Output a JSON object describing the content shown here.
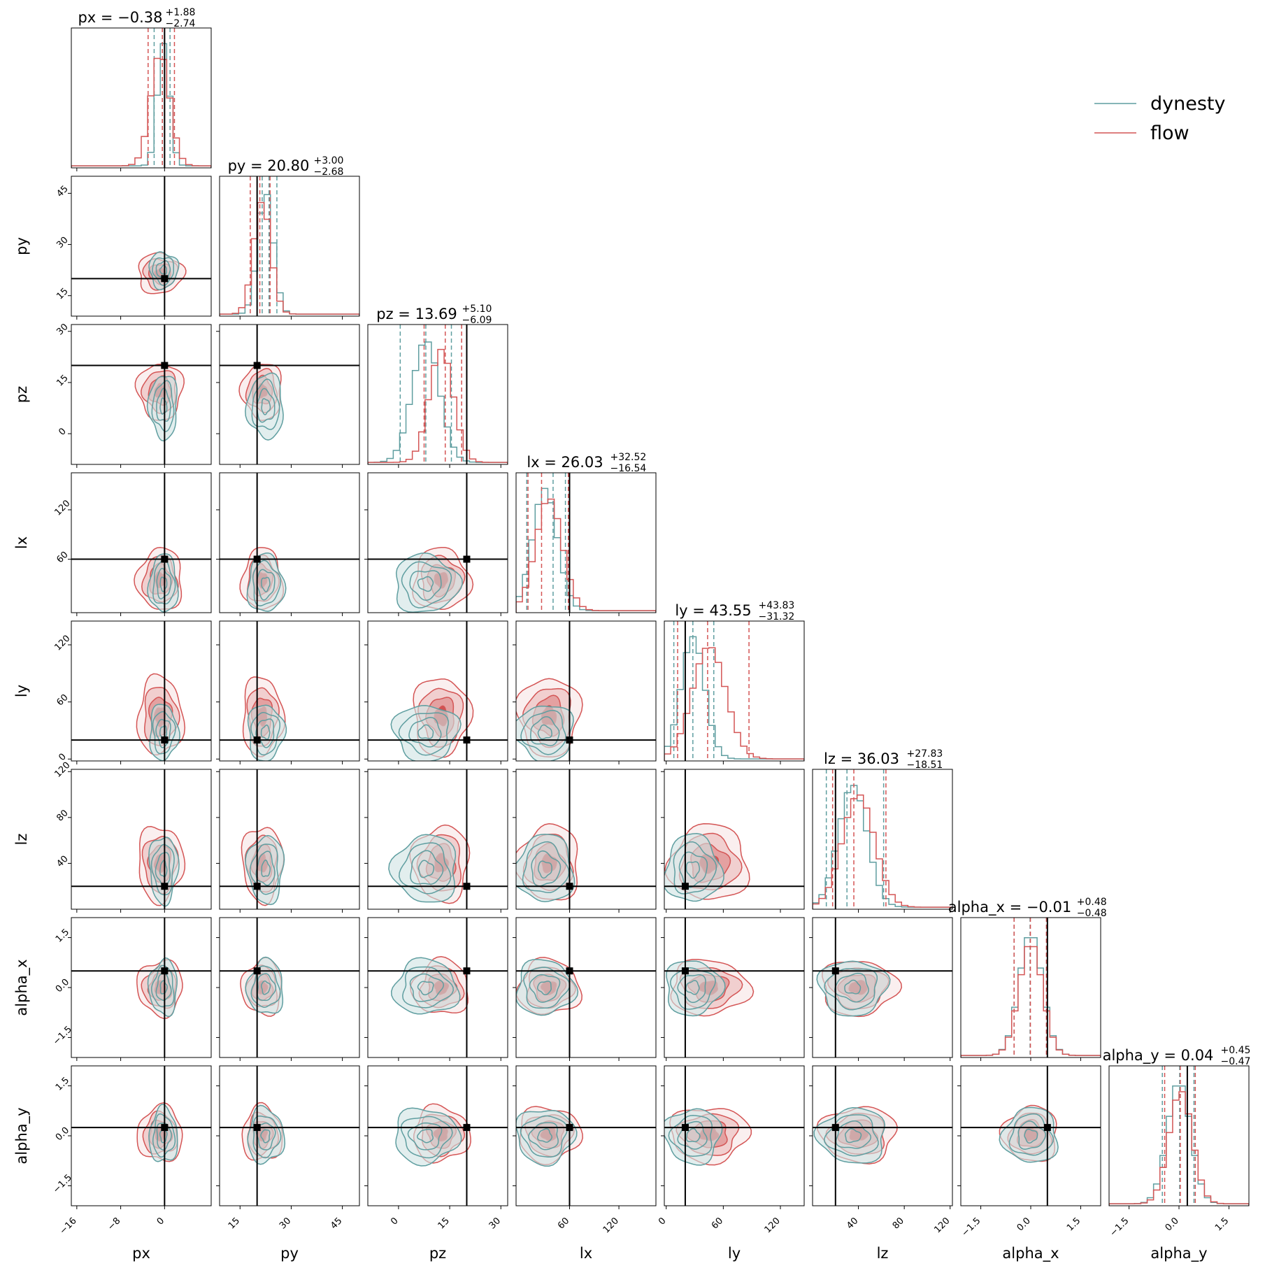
{
  "chart_data": {
    "type": "corner",
    "parameters": [
      "px",
      "py",
      "pz",
      "lx",
      "ly",
      "lz",
      "alpha_x",
      "alpha_y"
    ],
    "axis_labels": [
      "px",
      "py",
      "pz",
      "lx",
      "ly",
      "lz",
      "alpha_x",
      "alpha_y"
    ],
    "ranges": [
      [
        -17,
        8.5
      ],
      [
        9,
        50
      ],
      [
        -9,
        32
      ],
      [
        -5,
        165
      ],
      [
        -2,
        145
      ],
      [
        0,
        122
      ],
      [
        -2.1,
        2.1
      ],
      [
        -2.1,
        2.1
      ]
    ],
    "ticks": [
      [
        -16,
        -8,
        0
      ],
      [
        15,
        30,
        45
      ],
      [
        0,
        15,
        30
      ],
      [
        60,
        120
      ],
      [
        0,
        60,
        120
      ],
      [
        40,
        80,
        120
      ],
      [
        -1.5,
        0.0,
        1.5
      ],
      [
        -1.5,
        0.0,
        1.5
      ]
    ],
    "tick_labels": [
      [
        "−16",
        "−8",
        "0"
      ],
      [
        "15",
        "30",
        "45"
      ],
      [
        "0",
        "15",
        "30"
      ],
      [
        "60",
        "120"
      ],
      [
        "0",
        "60",
        "120"
      ],
      [
        "40",
        "80",
        "120"
      ],
      [
        "−1.5",
        "0.0",
        "1.5"
      ],
      [
        "−1.5",
        "0.0",
        "1.5"
      ]
    ],
    "truths": [
      0.0,
      20.0,
      20.0,
      60.0,
      20.0,
      20.0,
      0.5,
      0.25
    ],
    "titles": [
      {
        "name": "px",
        "median": "−0.38",
        "plus": "+1.88",
        "minus": "−2.74"
      },
      {
        "name": "py",
        "median": "20.80",
        "plus": "+3.00",
        "minus": "−2.68"
      },
      {
        "name": "pz",
        "median": "13.69",
        "plus": "+5.10",
        "minus": "−6.09"
      },
      {
        "name": "lx",
        "median": "26.03",
        "plus": "+32.52",
        "minus": "−16.54"
      },
      {
        "name": "ly",
        "median": "43.55",
        "plus": "+43.83",
        "minus": "−31.32"
      },
      {
        "name": "lz",
        "median": "36.03",
        "plus": "+27.83",
        "minus": "−18.51"
      },
      {
        "name": "alpha_x",
        "median": "−0.01",
        "plus": "+0.48",
        "minus": "−0.48"
      },
      {
        "name": "alpha_y",
        "median": "0.04",
        "plus": "+0.45",
        "minus": "−0.47"
      }
    ],
    "series": [
      {
        "name": "dynesty",
        "color": "#5f9ea0",
        "quantiles": [
          [
            -1.9,
            -0.4,
            1.0
          ],
          [
            21.5,
            23.5,
            25.8
          ],
          [
            0.5,
            8,
            15.5
          ],
          [
            8,
            40,
            55
          ],
          [
            8,
            28,
            50
          ],
          [
            12,
            30,
            62
          ],
          [
            -0.5,
            -0.02,
            0.5
          ],
          [
            -0.5,
            0.02,
            0.45
          ]
        ],
        "center": [
          -0.2,
          22.5,
          8,
          30,
          28,
          35,
          0.0,
          0.0
        ],
        "spread": [
          2.2,
          4.5,
          8,
          30,
          25,
          25,
          0.7,
          0.7
        ]
      },
      {
        "name": "flow",
        "color": "#d45555",
        "quantiles": [
          [
            -3.0,
            -0.4,
            1.8
          ],
          [
            18,
            20.8,
            23.8
          ],
          [
            7.5,
            13.7,
            18.5
          ],
          [
            9.5,
            26,
            58.5
          ],
          [
            12,
            43.5,
            87
          ],
          [
            17.5,
            36,
            64
          ],
          [
            -0.5,
            -0.01,
            0.47
          ],
          [
            -0.43,
            0.04,
            0.49
          ]
        ],
        "center": [
          -0.8,
          21.5,
          12.5,
          35,
          45,
          40,
          0.0,
          0.05
        ],
        "spread": [
          3.5,
          5.0,
          7,
          32,
          35,
          28,
          0.7,
          0.7
        ]
      }
    ],
    "legend": {
      "entries": [
        "dynesty",
        "flow"
      ],
      "placement": "upper-right"
    }
  }
}
